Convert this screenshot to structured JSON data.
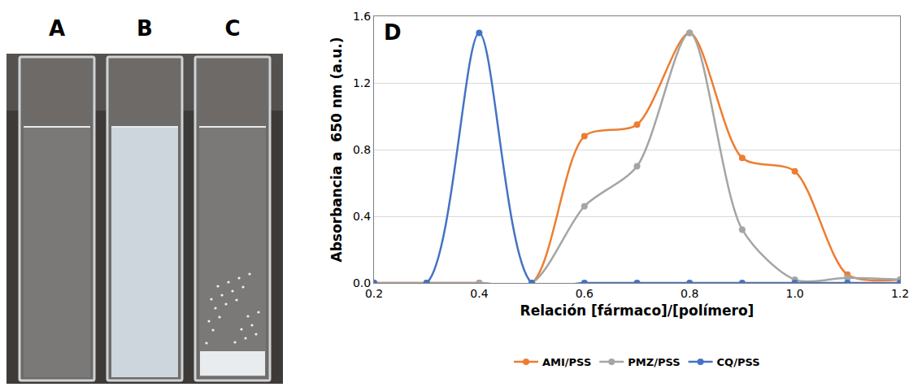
{
  "photo": {
    "labels": [
      "A",
      "B",
      "C"
    ]
  },
  "chart_data": {
    "type": "line",
    "panel_label": "D",
    "x_label": "Relación [fármaco]/[polímero]",
    "y_label": "Absorbancia a  650 nm (a.u.)",
    "x": [
      0.2,
      0.3,
      0.4,
      0.5,
      0.6,
      0.7,
      0.8,
      0.9,
      1.0,
      1.1,
      1.2
    ],
    "series": [
      {
        "name": "AMI/PSS",
        "color": "#ed7d31",
        "values": [
          0,
          0,
          0,
          0,
          0.88,
          0.95,
          1.5,
          0.75,
          0.67,
          0.05,
          0.02
        ]
      },
      {
        "name": "PMZ/PSS",
        "color": "#a5a5a5",
        "values": [
          0,
          0,
          0,
          0,
          0.46,
          0.7,
          1.5,
          0.32,
          0.02,
          0.03,
          0.02
        ]
      },
      {
        "name": "CQ/PSS",
        "color": "#4472c4",
        "values": [
          0,
          0,
          1.5,
          0,
          0,
          0,
          0,
          0,
          0,
          0,
          0
        ]
      }
    ],
    "xlim": [
      0.2,
      1.2
    ],
    "xticks": [
      {
        "value": 0.2,
        "label": "0.2"
      },
      {
        "value": 0.4,
        "label": "0.4"
      },
      {
        "value": 0.6,
        "label": "0.6"
      },
      {
        "value": 0.8,
        "label": "0.8"
      },
      {
        "value": 1.0,
        "label": "1.0"
      },
      {
        "value": 1.2,
        "label": "1.2"
      }
    ],
    "ylim": [
      0,
      1.6
    ],
    "yticks": [
      {
        "value": 0,
        "label": "0.0"
      },
      {
        "value": 0.4,
        "label": "0.4"
      },
      {
        "value": 0.8,
        "label": "0.8"
      },
      {
        "value": 1.2,
        "label": "1.2"
      },
      {
        "value": 1.6,
        "label": "1.6"
      }
    ],
    "grid": true,
    "legend": "bottom",
    "marker": "circle",
    "line_style": "smooth"
  }
}
